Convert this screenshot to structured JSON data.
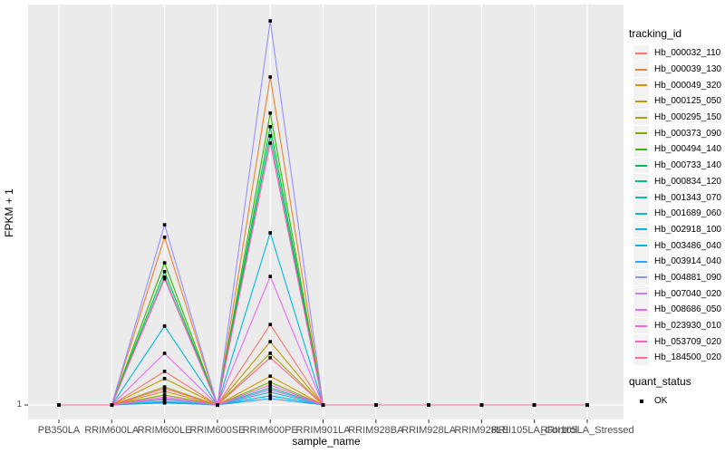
{
  "colors": {
    "panel_bg": "#EBEBEB",
    "grid": "#FFFFFF",
    "axis_text": "#4D4D4D",
    "tick_mark": "#333333",
    "title_text": "#000000",
    "legend_key_bg": "#F2F2F2",
    "point": "#000000"
  },
  "legends": {
    "tracking": {
      "title": "tracking_id"
    },
    "quant": {
      "title": "quant_status",
      "items": [
        {
          "label": "OK",
          "marker": "black-square"
        }
      ]
    }
  },
  "chart_data": {
    "type": "line",
    "title": "",
    "xlabel": "sample_name",
    "ylabel": "FPKM + 1",
    "legend_position": "right",
    "grid": "gray panel, white vertical gridline per category, white horizontal line at y=1",
    "marker": "filled black square at every data point (quant_status = OK)",
    "y_axis": {
      "scale": "log-like, only the value 1 is labeled at the baseline",
      "tick_labels": [
        "1"
      ],
      "baseline_value": 1,
      "note": "rel_heights are peak heights as fraction of panel height above the y=1 baseline (1.0 = panel top); all samples other than RRIM600LE and RRIM600PE sit on the baseline"
    },
    "x_categories": [
      "PB350LA",
      "RRIM600LA",
      "RRIM600LE",
      "RRIM600SE",
      "RRIM600PE",
      "RRIM901LA",
      "RRIM928BA",
      "RRIM928LA",
      "RRIM928LE",
      "RRII105LA_Control",
      "RRII105LA_Stressed"
    ],
    "series": [
      {
        "name": "Hb_000032_110",
        "color": "#F8766D",
        "rel_heights": [
          0,
          0,
          0.084,
          0,
          0.201,
          0,
          0,
          0,
          0,
          0,
          0
        ]
      },
      {
        "name": "Hb_000039_130",
        "color": "#EA8331",
        "rel_heights": [
          0,
          0,
          0.419,
          0,
          0.819,
          0,
          0,
          0,
          0,
          0,
          0
        ]
      },
      {
        "name": "Hb_000049_320",
        "color": "#D89000",
        "rel_heights": [
          0,
          0,
          0.034,
          0,
          0.072,
          0,
          0,
          0,
          0,
          0,
          0
        ]
      },
      {
        "name": "Hb_000125_050",
        "color": "#C09B00",
        "rel_heights": [
          0,
          0,
          0.066,
          0,
          0.158,
          0,
          0,
          0,
          0,
          0,
          0
        ]
      },
      {
        "name": "Hb_000295_150",
        "color": "#A3A500",
        "rel_heights": [
          0,
          0,
          0.045,
          0,
          0.129,
          0,
          0,
          0,
          0,
          0,
          0
        ]
      },
      {
        "name": "Hb_000373_090",
        "color": "#7CAE00",
        "rel_heights": [
          0,
          0,
          0.025,
          0,
          0.057,
          0,
          0,
          0,
          0,
          0,
          0
        ]
      },
      {
        "name": "Hb_000494_140",
        "color": "#39B600",
        "rel_heights": [
          0,
          0,
          0.355,
          0,
          0.729,
          0,
          0,
          0,
          0,
          0,
          0
        ]
      },
      {
        "name": "Hb_000733_140",
        "color": "#00BB4E",
        "rel_heights": [
          0,
          0,
          0.333,
          0,
          0.695,
          0,
          0,
          0,
          0,
          0,
          0
        ]
      },
      {
        "name": "Hb_000834_120",
        "color": "#00BF7D",
        "rel_heights": [
          0,
          0,
          0.319,
          0,
          0.672,
          0,
          0,
          0,
          0,
          0,
          0
        ]
      },
      {
        "name": "Hb_001343_070",
        "color": "#00C1A3",
        "rel_heights": [
          0,
          0,
          0.014,
          0,
          0.043,
          0,
          0,
          0,
          0,
          0,
          0
        ]
      },
      {
        "name": "Hb_001689_060",
        "color": "#00BFC4",
        "rel_heights": [
          0,
          0,
          0.009,
          0,
          0.032,
          0,
          0,
          0,
          0,
          0,
          0
        ]
      },
      {
        "name": "Hb_002918_100",
        "color": "#00BADE",
        "rel_heights": [
          0,
          0,
          0.197,
          0,
          0.43,
          0,
          0,
          0,
          0,
          0,
          0
        ]
      },
      {
        "name": "Hb_003486_040",
        "color": "#00B0F6",
        "rel_heights": [
          0,
          0,
          0.007,
          0,
          0.023,
          0,
          0,
          0,
          0,
          0,
          0
        ]
      },
      {
        "name": "Hb_003914_040",
        "color": "#35A2FF",
        "rel_heights": [
          0,
          0,
          0.005,
          0,
          0.016,
          0,
          0,
          0,
          0,
          0,
          0
        ]
      },
      {
        "name": "Hb_004881_090",
        "color": "#9590FF",
        "rel_heights": [
          0,
          0,
          0.45,
          0,
          0.959,
          0,
          0,
          0,
          0,
          0,
          0
        ]
      },
      {
        "name": "Hb_007040_020",
        "color": "#C77CFF",
        "rel_heights": [
          0,
          0,
          0.016,
          0,
          0.038,
          0,
          0,
          0,
          0,
          0,
          0
        ]
      },
      {
        "name": "Hb_008686_050",
        "color": "#E76BF3",
        "rel_heights": [
          0,
          0,
          0.129,
          0,
          0.321,
          0,
          0,
          0,
          0,
          0,
          0
        ]
      },
      {
        "name": "Hb_023930_010",
        "color": "#FA62DB",
        "rel_heights": [
          0,
          0,
          0.02,
          0,
          0.05,
          0,
          0,
          0,
          0,
          0,
          0
        ]
      },
      {
        "name": "Hb_053709_020",
        "color": "#FF62BC",
        "rel_heights": [
          0,
          0,
          0.315,
          0,
          0.654,
          0,
          0,
          0,
          0,
          0,
          0
        ]
      },
      {
        "name": "Hb_184500_020",
        "color": "#FF6A98",
        "rel_heights": [
          0,
          0,
          0.041,
          0,
          0.118,
          0,
          0,
          0,
          0,
          0,
          0
        ]
      }
    ]
  }
}
